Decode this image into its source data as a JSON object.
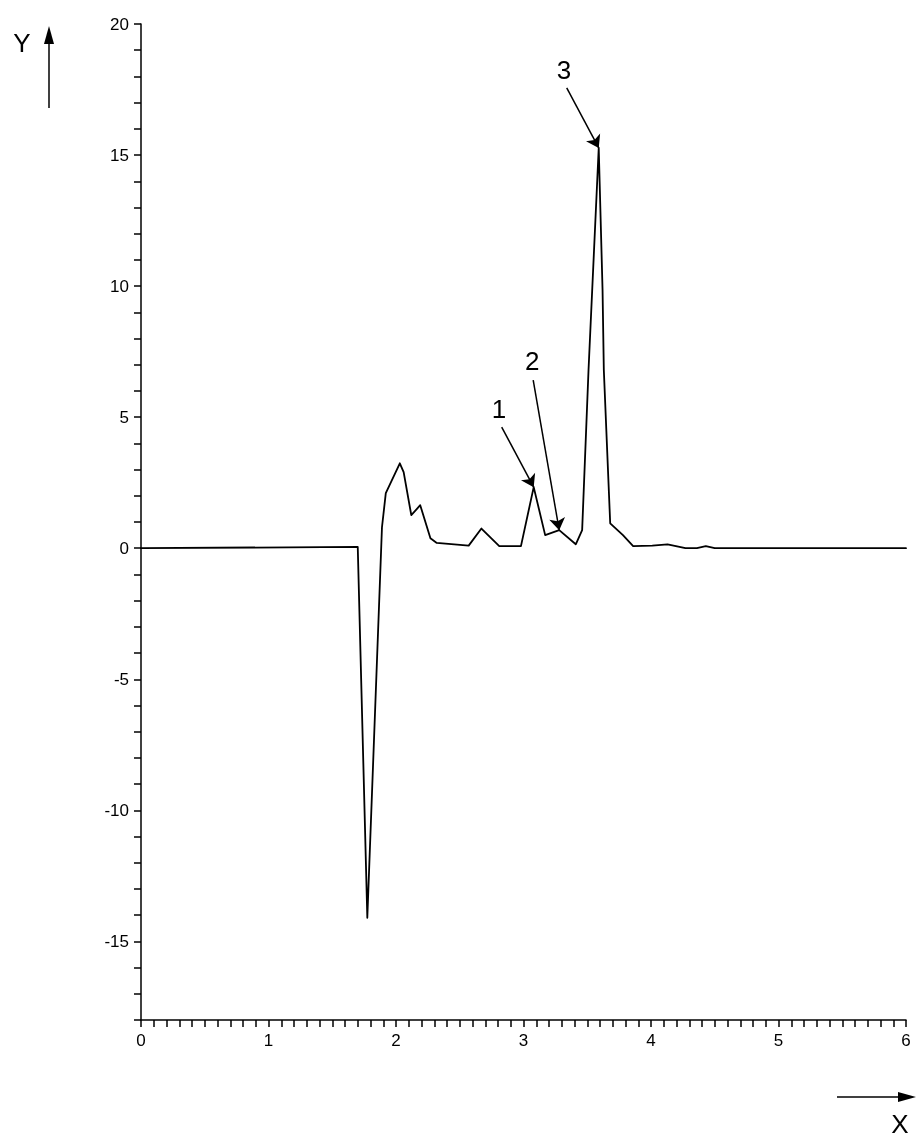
{
  "chart_data": {
    "type": "line",
    "xlabel": "X",
    "ylabel": "Y",
    "x": [
      0,
      1.7,
      1.775,
      1.89,
      1.92,
      2.03,
      2.06,
      2.12,
      2.19,
      2.27,
      2.32,
      2.57,
      2.67,
      2.81,
      2.98,
      3.08,
      3.17,
      3.28,
      3.41,
      3.46,
      3.51,
      3.59,
      3.62,
      3.63,
      3.68,
      3.78,
      3.86,
      4.01,
      4.13,
      4.27,
      4.36,
      4.43,
      4.5,
      6
    ],
    "series": [
      {
        "color": "#000000",
        "values": [
          0,
          0.05,
          -14.1,
          0.8,
          2.1,
          3.24,
          2.9,
          1.26,
          1.64,
          0.38,
          0.2,
          0.1,
          0.75,
          0.08,
          0.08,
          2.33,
          0.5,
          0.69,
          0.15,
          0.69,
          6.8,
          15.27,
          9.85,
          6.8,
          0.95,
          0.5,
          0.08,
          0.1,
          0.15,
          0,
          0,
          0.08,
          0,
          0
        ]
      }
    ],
    "xlim": [
      0,
      6
    ],
    "ylim": [
      -18,
      20
    ],
    "xticks": [
      0,
      {
        "value": 0.1,
        "label": null
      },
      {
        "value": 0.2,
        "label": null
      },
      {
        "value": 0.3,
        "label": null
      },
      {
        "value": 0.4,
        "label": null
      },
      {
        "value": 0.5,
        "label": null
      },
      {
        "value": 0.6,
        "label": null
      },
      {
        "value": 0.7,
        "label": null
      },
      {
        "value": 0.8,
        "label": null
      },
      {
        "value": 0.9,
        "label": null
      },
      1,
      {
        "value": 1.1,
        "label": null
      },
      {
        "value": 1.2,
        "label": null
      },
      {
        "value": 1.3,
        "label": null
      },
      {
        "value": 1.4,
        "label": null
      },
      {
        "value": 1.5,
        "label": null
      },
      {
        "value": 1.6,
        "label": null
      },
      {
        "value": 1.7,
        "label": null
      },
      {
        "value": 1.8,
        "label": null
      },
      {
        "value": 1.9,
        "label": null
      },
      2,
      {
        "value": 2.1,
        "label": null
      },
      {
        "value": 2.2,
        "label": null
      },
      {
        "value": 2.3,
        "label": null
      },
      {
        "value": 2.4,
        "label": null
      },
      {
        "value": 2.5,
        "label": null
      },
      {
        "value": 2.6,
        "label": null
      },
      {
        "value": 2.7,
        "label": null
      },
      {
        "value": 2.8,
        "label": null
      },
      {
        "value": 2.9,
        "label": null
      },
      3,
      {
        "value": 3.1,
        "label": null
      },
      {
        "value": 3.2,
        "label": null
      },
      {
        "value": 3.3,
        "label": null
      },
      {
        "value": 3.4,
        "label": null
      },
      {
        "value": 3.5,
        "label": null
      },
      {
        "value": 3.6,
        "label": null
      },
      {
        "value": 3.7,
        "label": null
      },
      {
        "value": 3.8,
        "label": null
      },
      {
        "value": 3.9,
        "label": null
      },
      4,
      {
        "value": 4.1,
        "label": null
      },
      {
        "value": 4.2,
        "label": null
      },
      {
        "value": 4.3,
        "label": null
      },
      {
        "value": 4.4,
        "label": null
      },
      {
        "value": 4.5,
        "label": null
      },
      {
        "value": 4.6,
        "label": null
      },
      {
        "value": 4.7,
        "label": null
      },
      {
        "value": 4.8,
        "label": null
      },
      {
        "value": 4.9,
        "label": null
      },
      5,
      {
        "value": 5.1,
        "label": null
      },
      {
        "value": 5.2,
        "label": null
      },
      {
        "value": 5.3,
        "label": null
      },
      {
        "value": 5.4,
        "label": null
      },
      {
        "value": 5.5,
        "label": null
      },
      {
        "value": 5.6,
        "label": null
      },
      {
        "value": 5.7,
        "label": null
      },
      {
        "value": 5.8,
        "label": null
      },
      {
        "value": 5.9,
        "label": null
      },
      6
    ],
    "yticks": [
      {
        "value": -18,
        "label": null
      },
      {
        "value": -17,
        "label": null
      },
      {
        "value": -16,
        "label": null
      },
      -15,
      {
        "value": -14,
        "label": null
      },
      {
        "value": -13,
        "label": null
      },
      {
        "value": -12,
        "label": null
      },
      {
        "value": -11,
        "label": null
      },
      -10,
      {
        "value": -9,
        "label": null
      },
      {
        "value": -8,
        "label": null
      },
      {
        "value": -7,
        "label": null
      },
      {
        "value": -6,
        "label": null
      },
      -5,
      {
        "value": -4,
        "label": null
      },
      {
        "value": -3,
        "label": null
      },
      {
        "value": -2,
        "label": null
      },
      {
        "value": -1,
        "label": null
      },
      0,
      {
        "value": 1,
        "label": null
      },
      {
        "value": 2,
        "label": null
      },
      {
        "value": 3,
        "label": null
      },
      {
        "value": 4,
        "label": null
      },
      5,
      {
        "value": 6,
        "label": null
      },
      {
        "value": 7,
        "label": null
      },
      {
        "value": 8,
        "label": null
      },
      {
        "value": 9,
        "label": null
      },
      10,
      {
        "value": 11,
        "label": null
      },
      {
        "value": 12,
        "label": null
      },
      {
        "value": 13,
        "label": null
      },
      {
        "value": 14,
        "label": null
      },
      15,
      {
        "value": 16,
        "label": null
      },
      {
        "value": 17,
        "label": null
      },
      {
        "value": 18,
        "label": null
      },
      {
        "value": 19,
        "label": null
      },
      20
    ],
    "grid": false,
    "marker": "none",
    "line_style": "solid",
    "annotations": [
      {
        "text": "1",
        "x": 3.08,
        "y": 2.33
      },
      {
        "text": "2",
        "x": 3.28,
        "y": 0.69
      },
      {
        "text": "3",
        "x": 3.59,
        "y": 15.27
      }
    ]
  }
}
